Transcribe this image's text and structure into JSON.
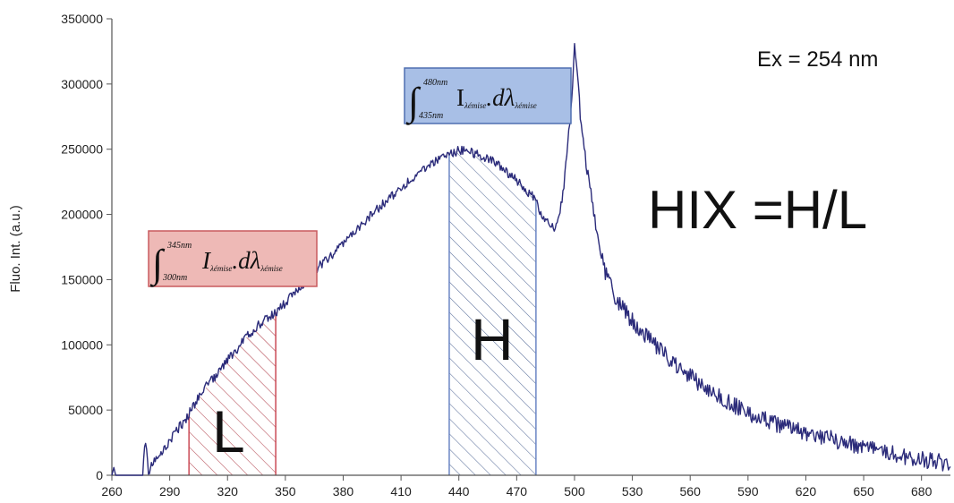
{
  "chart_data": {
    "type": "line",
    "title": "",
    "xlabel": "",
    "ylabel": "Fluo. Int. (a.u.)",
    "xlim": [
      260,
      695
    ],
    "ylim": [
      0,
      350000
    ],
    "x_ticks": [
      260,
      290,
      320,
      350,
      380,
      410,
      440,
      470,
      500,
      530,
      560,
      590,
      620,
      650,
      680
    ],
    "y_ticks": [
      0,
      50000,
      100000,
      150000,
      200000,
      250000,
      300000,
      350000
    ],
    "x_tick_labels": [
      "260",
      "290",
      "320",
      "350",
      "380",
      "410",
      "440",
      "470",
      "500",
      "530",
      "560",
      "590",
      "620",
      "650",
      "680"
    ],
    "y_tick_labels": [
      "0",
      "50000",
      "100000",
      "150000",
      "200000",
      "250000",
      "300000",
      "350000"
    ],
    "grid": false,
    "line_color": "#2b2b7a",
    "series": [
      {
        "x": [
          260,
          261,
          262,
          264,
          266,
          268,
          270,
          272,
          274,
          275,
          276,
          277,
          278,
          279,
          280,
          282,
          284,
          286,
          288,
          290,
          292,
          295,
          298,
          300,
          303,
          306,
          310,
          315,
          320,
          325,
          330,
          335,
          340,
          345,
          350,
          355,
          360,
          365,
          370,
          375,
          380,
          385,
          390,
          395,
          400,
          405,
          410,
          415,
          420,
          425,
          430,
          435,
          440,
          445,
          450,
          455,
          460,
          465,
          470,
          475,
          478,
          480,
          483,
          485,
          488,
          490,
          492,
          494,
          496,
          498,
          499,
          500,
          501,
          502,
          503,
          505,
          508,
          510,
          515,
          520,
          525,
          530,
          535,
          540,
          545,
          550,
          555,
          560,
          565,
          570,
          575,
          580,
          585,
          590,
          595,
          600,
          610,
          620,
          630,
          640,
          650,
          660,
          670,
          680,
          690,
          695
        ],
        "y": [
          0,
          6000,
          0,
          0,
          0,
          0,
          0,
          0,
          0,
          0,
          0,
          25000,
          20000,
          2000,
          6000,
          10000,
          14000,
          17000,
          22000,
          27000,
          31000,
          37000,
          42000,
          47000,
          55000,
          62000,
          70000,
          78000,
          88000,
          97000,
          106000,
          114000,
          120000,
          125000,
          132000,
          140000,
          148000,
          156000,
          164000,
          170000,
          178000,
          186000,
          193000,
          200000,
          207000,
          214000,
          220000,
          227000,
          233000,
          238000,
          243000,
          246000,
          249000,
          248000,
          246000,
          243000,
          238000,
          232000,
          226000,
          218000,
          214000,
          210000,
          200000,
          196000,
          192000,
          190000,
          200000,
          215000,
          245000,
          280000,
          300000,
          328000,
          318000,
          300000,
          275000,
          250000,
          220000,
          200000,
          160000,
          140000,
          128000,
          118000,
          110000,
          102000,
          95000,
          88000,
          82000,
          76000,
          70000,
          65000,
          60000,
          56000,
          52000,
          48000,
          45000,
          42000,
          37000,
          33000,
          29000,
          25000,
          21000,
          18000,
          15000,
          12000,
          10000,
          9000
        ]
      }
    ],
    "annotations": {
      "ex": "Ex = 254 nm",
      "hix": "HIX =H/L",
      "region_L": {
        "label": "L",
        "x_start": 300,
        "x_end": 345,
        "color": "#c94a55"
      },
      "region_H": {
        "label": "H",
        "x_start": 435,
        "x_end": 480,
        "color": "#6b86c4"
      },
      "formula_L": {
        "lower": "300",
        "upper": "345",
        "unit": "nm",
        "integrand": "I",
        "sub": "λémise",
        "diff": ".dλ",
        "fill": "#eeb9b6",
        "stroke": "#c95a5f"
      },
      "formula_H": {
        "lower": "435",
        "upper": "480",
        "unit": "nm",
        "integrand": "I",
        "sub": "λémise",
        "diff": ".dλ",
        "fill": "#a8bfe6",
        "stroke": "#4f6fb0"
      }
    }
  }
}
